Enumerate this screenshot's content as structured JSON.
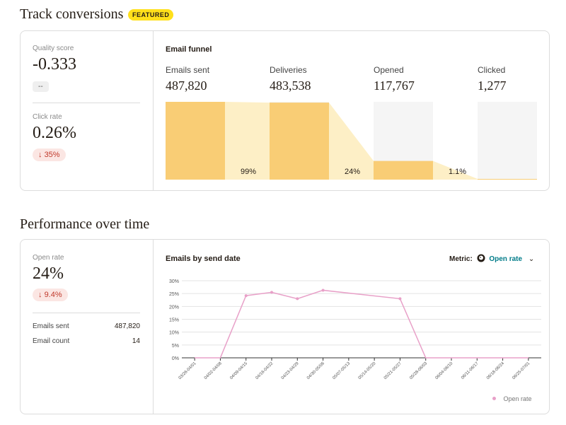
{
  "conversions": {
    "title": "Track conversions",
    "badge": "FEATURED",
    "quality": {
      "label": "Quality score",
      "value": "-0.333",
      "delta": "--"
    },
    "click_rate": {
      "label": "Click rate",
      "value": "0.26%",
      "delta": "35%"
    },
    "funnel": {
      "title": "Email funnel",
      "stages": [
        {
          "label": "Emails sent",
          "value": "487,820"
        },
        {
          "label": "Deliveries",
          "value": "483,538"
        },
        {
          "label": "Opened",
          "value": "117,767"
        },
        {
          "label": "Clicked",
          "value": "1,277"
        }
      ],
      "conversion_pcts": [
        "99%",
        "24%",
        "1.1%"
      ],
      "fill_fractions": [
        1.0,
        0.99,
        0.24,
        0.0026
      ]
    }
  },
  "performance": {
    "title": "Performance over time",
    "open_rate": {
      "label": "Open rate",
      "value": "24%",
      "delta": "9.4%"
    },
    "rows": [
      {
        "label": "Emails sent",
        "value": "487,820"
      },
      {
        "label": "Email count",
        "value": "14"
      }
    ],
    "chart_title": "Emails by send date",
    "metric_label": "Metric:",
    "metric_value": "Open rate",
    "legend": "Open rate",
    "colors": {
      "line": "#e8a0c8",
      "accent": "#007c89",
      "funnel_bar": "#f9cd75",
      "funnel_flow": "#fdefc6",
      "funnel_empty": "#f5f5f5"
    }
  },
  "chart_data": {
    "type": "line",
    "x": [
      "03/26-04/01",
      "04/02-04/08",
      "04/09-04/15",
      "04/16-04/22",
      "04/23-04/29",
      "04/30-05/06",
      "05/07-05/13",
      "05/14-05/20",
      "05/21-05/27",
      "05/28-06/03",
      "06/04-06/10",
      "06/11-06/17",
      "06/18-06/24",
      "06/25-07/01"
    ],
    "series": [
      {
        "name": "Open rate",
        "values": [
          0,
          0,
          24.2,
          25.5,
          23.0,
          26.3,
          null,
          null,
          23.0,
          0,
          0,
          0,
          0,
          0
        ]
      }
    ],
    "yticks": [
      "0%",
      "5%",
      "10%",
      "15%",
      "20%",
      "25%",
      "30%"
    ],
    "ylim": [
      0,
      30
    ],
    "grid": true,
    "legend_position": "bottom-right"
  }
}
